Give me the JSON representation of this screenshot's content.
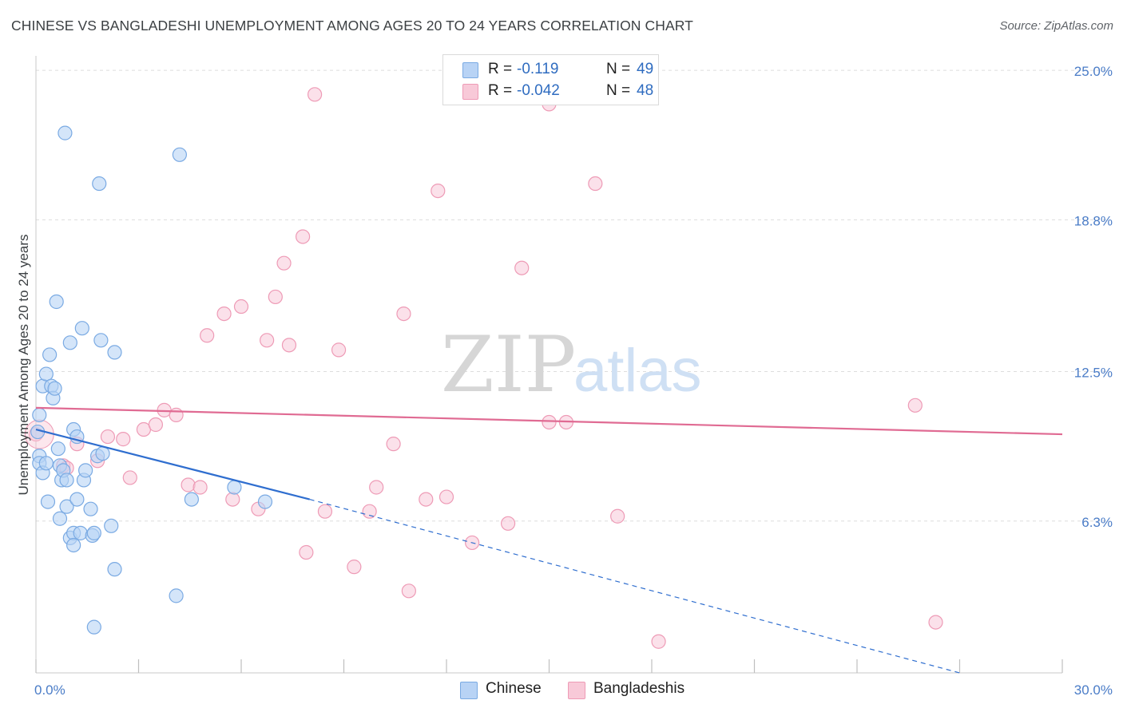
{
  "title": "CHINESE VS BANGLADESHI UNEMPLOYMENT AMONG AGES 20 TO 24 YEARS CORRELATION CHART",
  "source": "Source: ZipAtlas.com",
  "watermark": {
    "zip": "ZIP",
    "atlas": "atlas"
  },
  "legend": {
    "chinese": {
      "r_label": "R =",
      "r_value": "-0.119",
      "n_label": "N =",
      "n_value": "49"
    },
    "bangladeshi": {
      "r_label": "R =",
      "r_value": "-0.042",
      "n_label": "N =",
      "n_value": "48"
    }
  },
  "bottom_legend": {
    "chinese": "Chinese",
    "bangladeshi": "Bangladeshis"
  },
  "colors": {
    "chinese_fill": "#b8d3f5",
    "chinese_stroke": "#7aaae3",
    "chinese_line": "#2f6ecf",
    "bangladeshi_fill": "#f8c9d8",
    "bangladeshi_stroke": "#ee9bb6",
    "bangladeshi_line": "#e06b93",
    "tick_text": "#4a7cc7",
    "grid": "#dddddd"
  },
  "chart_data": {
    "type": "scatter",
    "title": "CHINESE VS BANGLADESHI UNEMPLOYMENT AMONG AGES 20 TO 24 YEARS CORRELATION CHART",
    "xlabel": "",
    "ylabel": "Unemployment Among Ages 20 to 24 years",
    "xlim": [
      0,
      30
    ],
    "ylim": [
      0,
      25.6
    ],
    "x_tick_labels": [
      "0.0%",
      "30.0%"
    ],
    "y_ticks": [
      6.3,
      12.5,
      18.8,
      25.0
    ],
    "y_tick_labels": [
      "6.3%",
      "12.5%",
      "18.8%",
      "25.0%"
    ],
    "grid": true,
    "legend_position": "top-center",
    "series": [
      {
        "name": "Chinese",
        "points": [
          [
            0.1,
            10.7
          ],
          [
            0.1,
            9.0
          ],
          [
            0.1,
            8.7
          ],
          [
            0.2,
            11.9
          ],
          [
            0.2,
            8.3
          ],
          [
            0.3,
            12.4
          ],
          [
            0.3,
            8.7
          ],
          [
            0.35,
            7.1
          ],
          [
            0.4,
            13.2
          ],
          [
            0.45,
            11.9
          ],
          [
            0.5,
            11.4
          ],
          [
            0.55,
            11.8
          ],
          [
            0.6,
            15.4
          ],
          [
            0.65,
            9.3
          ],
          [
            0.7,
            8.6
          ],
          [
            0.7,
            6.4
          ],
          [
            0.75,
            8.0
          ],
          [
            0.8,
            8.4
          ],
          [
            0.85,
            22.4
          ],
          [
            0.9,
            6.9
          ],
          [
            0.9,
            8.0
          ],
          [
            1.0,
            13.7
          ],
          [
            1.0,
            5.6
          ],
          [
            1.1,
            5.8
          ],
          [
            1.1,
            5.3
          ],
          [
            1.1,
            10.1
          ],
          [
            1.2,
            9.8
          ],
          [
            1.2,
            7.2
          ],
          [
            1.3,
            5.8
          ],
          [
            1.35,
            14.3
          ],
          [
            1.4,
            8.0
          ],
          [
            1.45,
            8.4
          ],
          [
            1.6,
            6.8
          ],
          [
            1.65,
            5.7
          ],
          [
            1.7,
            5.8
          ],
          [
            1.7,
            1.9
          ],
          [
            1.8,
            9.0
          ],
          [
            1.85,
            20.3
          ],
          [
            1.9,
            13.8
          ],
          [
            1.95,
            9.1
          ],
          [
            2.2,
            6.1
          ],
          [
            2.3,
            4.3
          ],
          [
            2.3,
            13.3
          ],
          [
            4.1,
            3.2
          ],
          [
            4.2,
            21.5
          ],
          [
            4.55,
            7.2
          ],
          [
            5.8,
            7.7
          ],
          [
            6.7,
            7.1
          ],
          [
            0.05,
            10.0
          ]
        ]
      },
      {
        "name": "Bangladeshis",
        "points": [
          [
            0.0,
            9.9
          ],
          [
            0.8,
            8.6
          ],
          [
            0.9,
            8.5
          ],
          [
            1.2,
            9.5
          ],
          [
            1.8,
            8.8
          ],
          [
            2.1,
            9.8
          ],
          [
            2.55,
            9.7
          ],
          [
            2.75,
            8.1
          ],
          [
            3.15,
            10.1
          ],
          [
            3.5,
            10.3
          ],
          [
            3.75,
            10.9
          ],
          [
            4.1,
            10.7
          ],
          [
            4.45,
            7.8
          ],
          [
            4.8,
            7.7
          ],
          [
            5.0,
            14.0
          ],
          [
            5.5,
            14.9
          ],
          [
            5.75,
            7.2
          ],
          [
            6.0,
            15.2
          ],
          [
            6.5,
            6.8
          ],
          [
            6.75,
            13.8
          ],
          [
            7.0,
            15.6
          ],
          [
            7.25,
            17.0
          ],
          [
            7.4,
            13.6
          ],
          [
            7.8,
            18.1
          ],
          [
            8.15,
            24.0
          ],
          [
            8.45,
            6.7
          ],
          [
            8.85,
            13.4
          ],
          [
            9.3,
            4.4
          ],
          [
            9.75,
            6.7
          ],
          [
            9.95,
            7.7
          ],
          [
            10.45,
            9.5
          ],
          [
            10.75,
            14.9
          ],
          [
            10.9,
            3.4
          ],
          [
            11.4,
            7.2
          ],
          [
            11.75,
            20.0
          ],
          [
            12.0,
            7.3
          ],
          [
            12.75,
            5.4
          ],
          [
            13.8,
            6.2
          ],
          [
            14.2,
            16.8
          ],
          [
            15.0,
            23.6
          ],
          [
            15.0,
            10.4
          ],
          [
            15.5,
            10.4
          ],
          [
            16.35,
            20.3
          ],
          [
            17.0,
            6.5
          ],
          [
            18.2,
            1.3
          ],
          [
            25.7,
            11.1
          ],
          [
            26.3,
            2.1
          ],
          [
            7.9,
            5.0
          ]
        ]
      }
    ],
    "trend_lines": [
      {
        "name": "Chinese",
        "solid": [
          [
            0,
            10.1
          ],
          [
            8.0,
            7.2
          ]
        ],
        "dashed": [
          [
            8.0,
            7.2
          ],
          [
            27.0,
            0.0
          ]
        ]
      },
      {
        "name": "Bangladeshis",
        "solid": [
          [
            0,
            11.0
          ],
          [
            30,
            9.9
          ]
        ]
      }
    ]
  }
}
